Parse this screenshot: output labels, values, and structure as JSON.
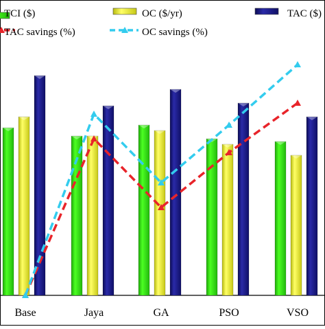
{
  "chart_data": {
    "type": "bar",
    "categories": [
      "Base",
      "Jaya",
      "GA",
      "PSO",
      "VSO"
    ],
    "series": [
      {
        "name": "TCI ($)",
        "kind": "bar",
        "color": "#33dd11",
        "values": [
          61,
          58,
          62,
          57,
          56
        ]
      },
      {
        "name": "OC ($/yr)",
        "kind": "bar",
        "color": "#e8ec2a",
        "values": [
          65,
          58,
          60,
          55,
          51
        ]
      },
      {
        "name": "TAC ($)",
        "kind": "bar",
        "color": "#1a1a7a",
        "values": [
          80,
          69,
          75,
          70,
          65
        ]
      },
      {
        "name": "TAC savings (%)",
        "kind": "line",
        "color": "#e8242a",
        "values": [
          0,
          57,
          32,
          52,
          70
        ]
      },
      {
        "name": "OC savings (%)",
        "kind": "line",
        "color": "#33ccee",
        "values": [
          0,
          66,
          41,
          62,
          84
        ]
      }
    ],
    "ylim": [
      0,
      100
    ],
    "grid": false,
    "legend_position": "top"
  }
}
